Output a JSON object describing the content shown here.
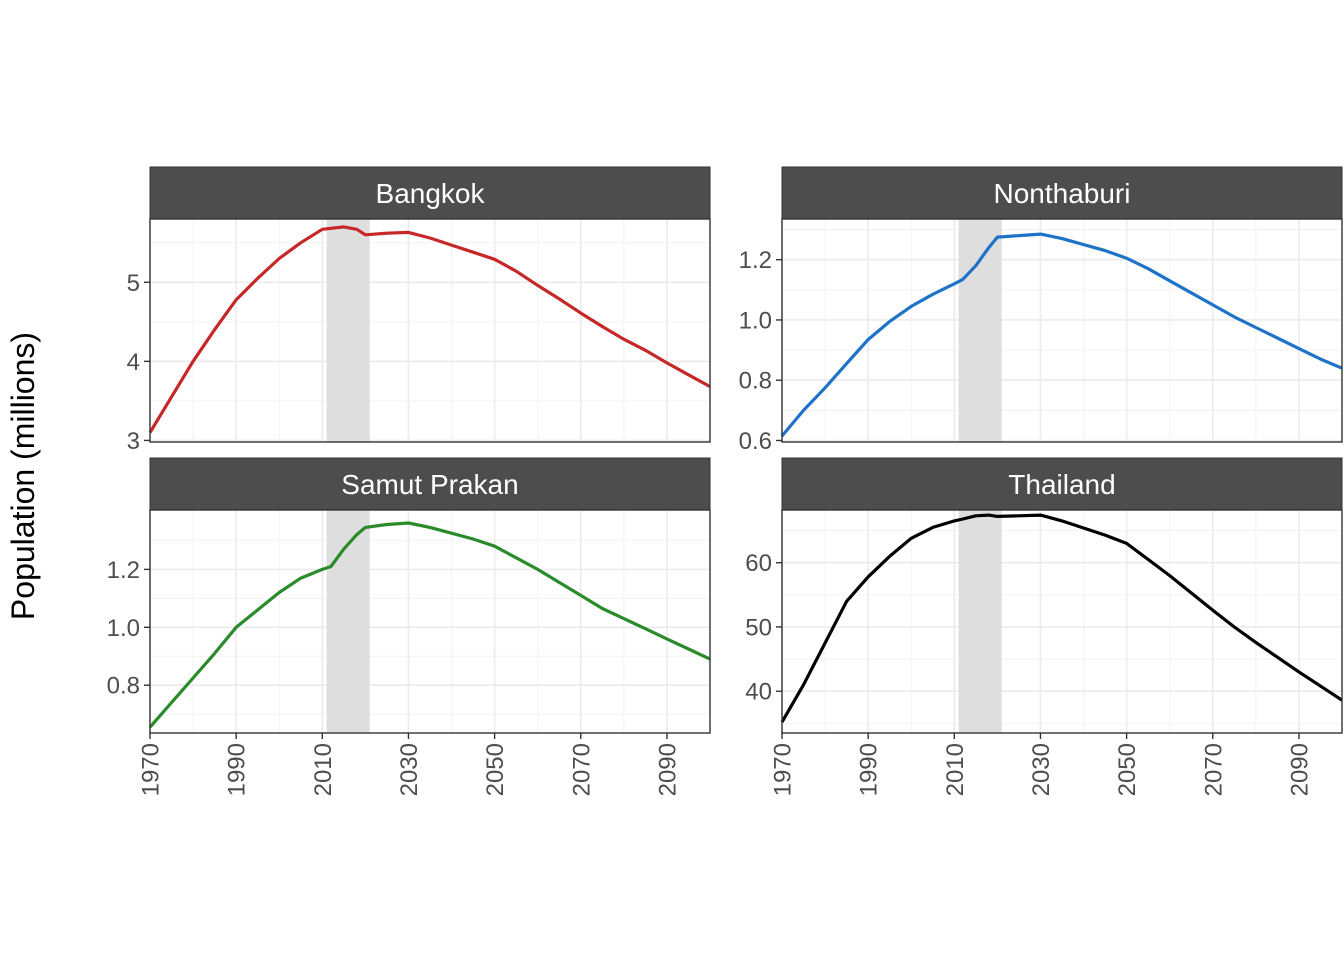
{
  "chart_data": {
    "type": "line",
    "ylabel": "Population (millions)",
    "xlabel": "",
    "shaded_period": [
      2011,
      2021
    ],
    "xlim": [
      1970,
      2100
    ],
    "x_ticks": [
      1970,
      1990,
      2010,
      2030,
      2050,
      2070,
      2090
    ],
    "colors": {
      "strip": "#4d4d4d",
      "shade": "#dedede",
      "grid": "#ebebeb"
    },
    "panels": [
      {
        "name": "Bangkok",
        "color": "#c62828",
        "ylim": [
          2.98,
          5.8
        ],
        "y_ticks": [
          3,
          4,
          5
        ],
        "points": [
          [
            1970,
            3.1
          ],
          [
            1975,
            3.55
          ],
          [
            1980,
            4.0
          ],
          [
            1985,
            4.4
          ],
          [
            1990,
            4.78
          ],
          [
            1995,
            5.05
          ],
          [
            2000,
            5.3
          ],
          [
            2005,
            5.5
          ],
          [
            2010,
            5.67
          ],
          [
            2015,
            5.7
          ],
          [
            2018,
            5.67
          ],
          [
            2020,
            5.6
          ],
          [
            2025,
            5.62
          ],
          [
            2030,
            5.63
          ],
          [
            2035,
            5.56
          ],
          [
            2040,
            5.47
          ],
          [
            2045,
            5.38
          ],
          [
            2050,
            5.29
          ],
          [
            2055,
            5.14
          ],
          [
            2060,
            4.96
          ],
          [
            2065,
            4.79
          ],
          [
            2070,
            4.61
          ],
          [
            2075,
            4.44
          ],
          [
            2080,
            4.28
          ],
          [
            2085,
            4.14
          ],
          [
            2090,
            3.98
          ],
          [
            2095,
            3.83
          ],
          [
            2100,
            3.68
          ]
        ]
      },
      {
        "name": "Nonthaburi",
        "color": "#1e73c8",
        "ylim": [
          0.595,
          1.335
        ],
        "y_ticks": [
          0.6,
          0.8,
          1.0,
          1.2
        ],
        "points": [
          [
            1970,
            0.615
          ],
          [
            1975,
            0.7
          ],
          [
            1980,
            0.775
          ],
          [
            1985,
            0.855
          ],
          [
            1990,
            0.935
          ],
          [
            1995,
            0.995
          ],
          [
            2000,
            1.045
          ],
          [
            2005,
            1.085
          ],
          [
            2010,
            1.12
          ],
          [
            2012,
            1.135
          ],
          [
            2015,
            1.18
          ],
          [
            2018,
            1.24
          ],
          [
            2020,
            1.275
          ],
          [
            2025,
            1.28
          ],
          [
            2030,
            1.285
          ],
          [
            2035,
            1.27
          ],
          [
            2040,
            1.25
          ],
          [
            2045,
            1.23
          ],
          [
            2050,
            1.205
          ],
          [
            2055,
            1.17
          ],
          [
            2060,
            1.13
          ],
          [
            2065,
            1.09
          ],
          [
            2070,
            1.05
          ],
          [
            2075,
            1.01
          ],
          [
            2080,
            0.975
          ],
          [
            2085,
            0.94
          ],
          [
            2090,
            0.905
          ],
          [
            2095,
            0.87
          ],
          [
            2100,
            0.84
          ]
        ]
      },
      {
        "name": "Samut Prakan",
        "color": "#2a8b2a",
        "ylim": [
          0.635,
          1.405
        ],
        "y_ticks": [
          0.8,
          1.0,
          1.2
        ],
        "points": [
          [
            1970,
            0.655
          ],
          [
            1975,
            0.74
          ],
          [
            1980,
            0.825
          ],
          [
            1985,
            0.91
          ],
          [
            1990,
            1.0
          ],
          [
            1995,
            1.06
          ],
          [
            2000,
            1.12
          ],
          [
            2005,
            1.17
          ],
          [
            2010,
            1.2
          ],
          [
            2012,
            1.21
          ],
          [
            2015,
            1.27
          ],
          [
            2018,
            1.32
          ],
          [
            2020,
            1.345
          ],
          [
            2025,
            1.355
          ],
          [
            2030,
            1.36
          ],
          [
            2035,
            1.345
          ],
          [
            2040,
            1.325
          ],
          [
            2045,
            1.305
          ],
          [
            2050,
            1.28
          ],
          [
            2055,
            1.24
          ],
          [
            2060,
            1.2
          ],
          [
            2065,
            1.155
          ],
          [
            2070,
            1.11
          ],
          [
            2075,
            1.065
          ],
          [
            2080,
            1.03
          ],
          [
            2085,
            0.995
          ],
          [
            2090,
            0.96
          ],
          [
            2095,
            0.925
          ],
          [
            2100,
            0.89
          ]
        ]
      },
      {
        "name": "Thailand",
        "color": "#000000",
        "ylim": [
          33.5,
          68.2
        ],
        "y_ticks": [
          40,
          50,
          60
        ],
        "points": [
          [
            1970,
            35.2
          ],
          [
            1975,
            41.0
          ],
          [
            1980,
            47.5
          ],
          [
            1985,
            54.0
          ],
          [
            1990,
            57.8
          ],
          [
            1995,
            61.0
          ],
          [
            2000,
            63.8
          ],
          [
            2005,
            65.5
          ],
          [
            2010,
            66.5
          ],
          [
            2012,
            66.8
          ],
          [
            2015,
            67.3
          ],
          [
            2018,
            67.4
          ],
          [
            2020,
            67.2
          ],
          [
            2025,
            67.3
          ],
          [
            2030,
            67.4
          ],
          [
            2035,
            66.5
          ],
          [
            2040,
            65.4
          ],
          [
            2045,
            64.3
          ],
          [
            2050,
            63.0
          ],
          [
            2055,
            60.5
          ],
          [
            2060,
            58.0
          ],
          [
            2065,
            55.3
          ],
          [
            2070,
            52.6
          ],
          [
            2075,
            50.0
          ],
          [
            2080,
            47.6
          ],
          [
            2085,
            45.3
          ],
          [
            2090,
            43.0
          ],
          [
            2095,
            40.8
          ],
          [
            2100,
            38.6
          ]
        ]
      }
    ]
  }
}
